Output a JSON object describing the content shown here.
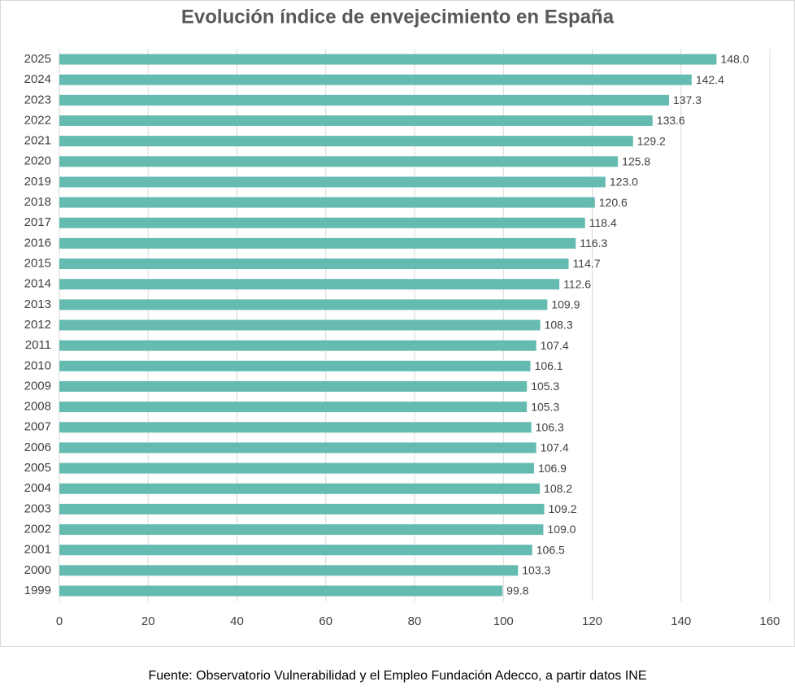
{
  "chart_data": {
    "type": "hbar",
    "title": "Evolución índice  de envejecimiento en España",
    "categories": [
      "2025",
      "2024",
      "2023",
      "2022",
      "2021",
      "2020",
      "2019",
      "2018",
      "2017",
      "2016",
      "2015",
      "2014",
      "2013",
      "2012",
      "2011",
      "2010",
      "2009",
      "2008",
      "2007",
      "2006",
      "2005",
      "2004",
      "2003",
      "2002",
      "2001",
      "2000",
      "1999"
    ],
    "values": [
      148.0,
      142.4,
      137.3,
      133.6,
      129.2,
      125.8,
      123.0,
      120.6,
      118.4,
      116.3,
      114.7,
      112.6,
      109.9,
      108.3,
      107.4,
      106.1,
      105.3,
      105.3,
      106.3,
      107.4,
      106.9,
      108.2,
      109.2,
      109.0,
      106.5,
      103.3,
      99.8
    ],
    "value_labels": [
      "148.0",
      "142.4",
      "137.3",
      "133.6",
      "129.2",
      "125.8",
      "123.0",
      "120.6",
      "118.4",
      "116.3",
      "114.7",
      "112.6",
      "109.9",
      "108.3",
      "107.4",
      "106.1",
      "105.3",
      "105.3",
      "106.3",
      "107.4",
      "106.9",
      "108.2",
      "109.2",
      "109.0",
      "106.5",
      "103.3",
      "99.8"
    ],
    "color": "#66bbb1",
    "xlim": [
      0,
      160
    ],
    "xticks": [
      0,
      20,
      40,
      60,
      80,
      100,
      120,
      140,
      160
    ],
    "grid": true,
    "source": "Fuente: Observatorio Vulnerabilidad y el Empleo Fundación Adecco, a partir datos INE"
  }
}
